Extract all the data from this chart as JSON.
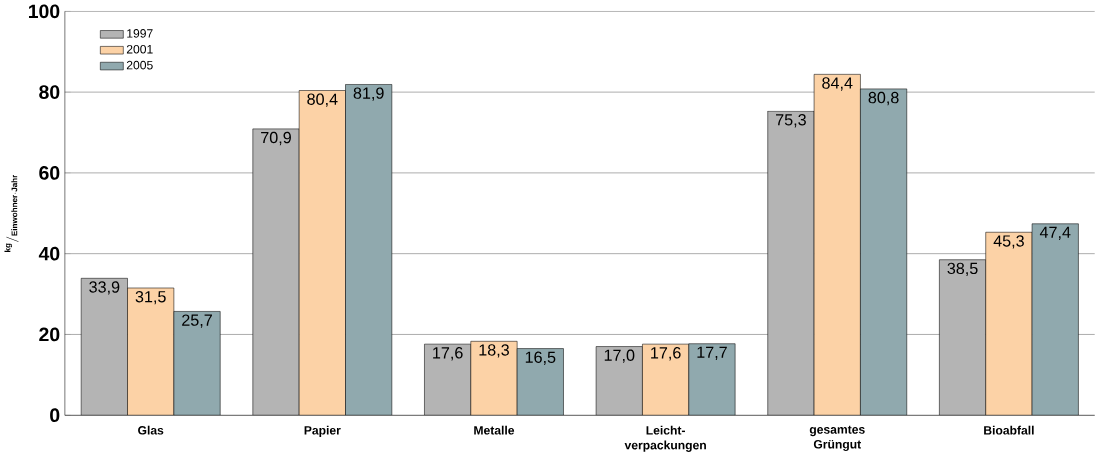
{
  "chart_data": {
    "type": "bar",
    "ylabel": "{}^{\\mathbf{kg}}/_{\\mathbf{Einwohner}\\cdot\\mathbf{Jahr}}",
    "categories": [
      "Glas",
      "Papier",
      "Metalle",
      "Leicht-verpackungen",
      "gesamtes Grüngut",
      "Bioabfall"
    ],
    "series": [
      {
        "name": "1997",
        "color": "#b4b4b4",
        "values": [
          33.9,
          70.9,
          17.6,
          17.0,
          75.3,
          38.5
        ],
        "value_labels": [
          "33,9",
          "70,9",
          "17,6",
          "17,0",
          "75,3",
          "38,5"
        ]
      },
      {
        "name": "2001",
        "color": "#fcd2a6",
        "values": [
          31.5,
          80.4,
          18.3,
          17.6,
          84.4,
          45.3
        ],
        "value_labels": [
          "31,5",
          "80,4",
          "18,3",
          "17,6",
          "84,4",
          "45,3"
        ]
      },
      {
        "name": "2005",
        "color": "#90a9ae",
        "values": [
          25.7,
          81.9,
          16.5,
          17.7,
          80.8,
          47.4
        ],
        "value_labels": [
          "25,7",
          "81,9",
          "16,5",
          "17,7",
          "80,8",
          "47,4"
        ]
      }
    ],
    "ylim": [
      0,
      100
    ],
    "yticks": [
      0,
      20,
      40,
      60,
      80,
      100
    ],
    "grid": "y",
    "legend": "top left"
  }
}
